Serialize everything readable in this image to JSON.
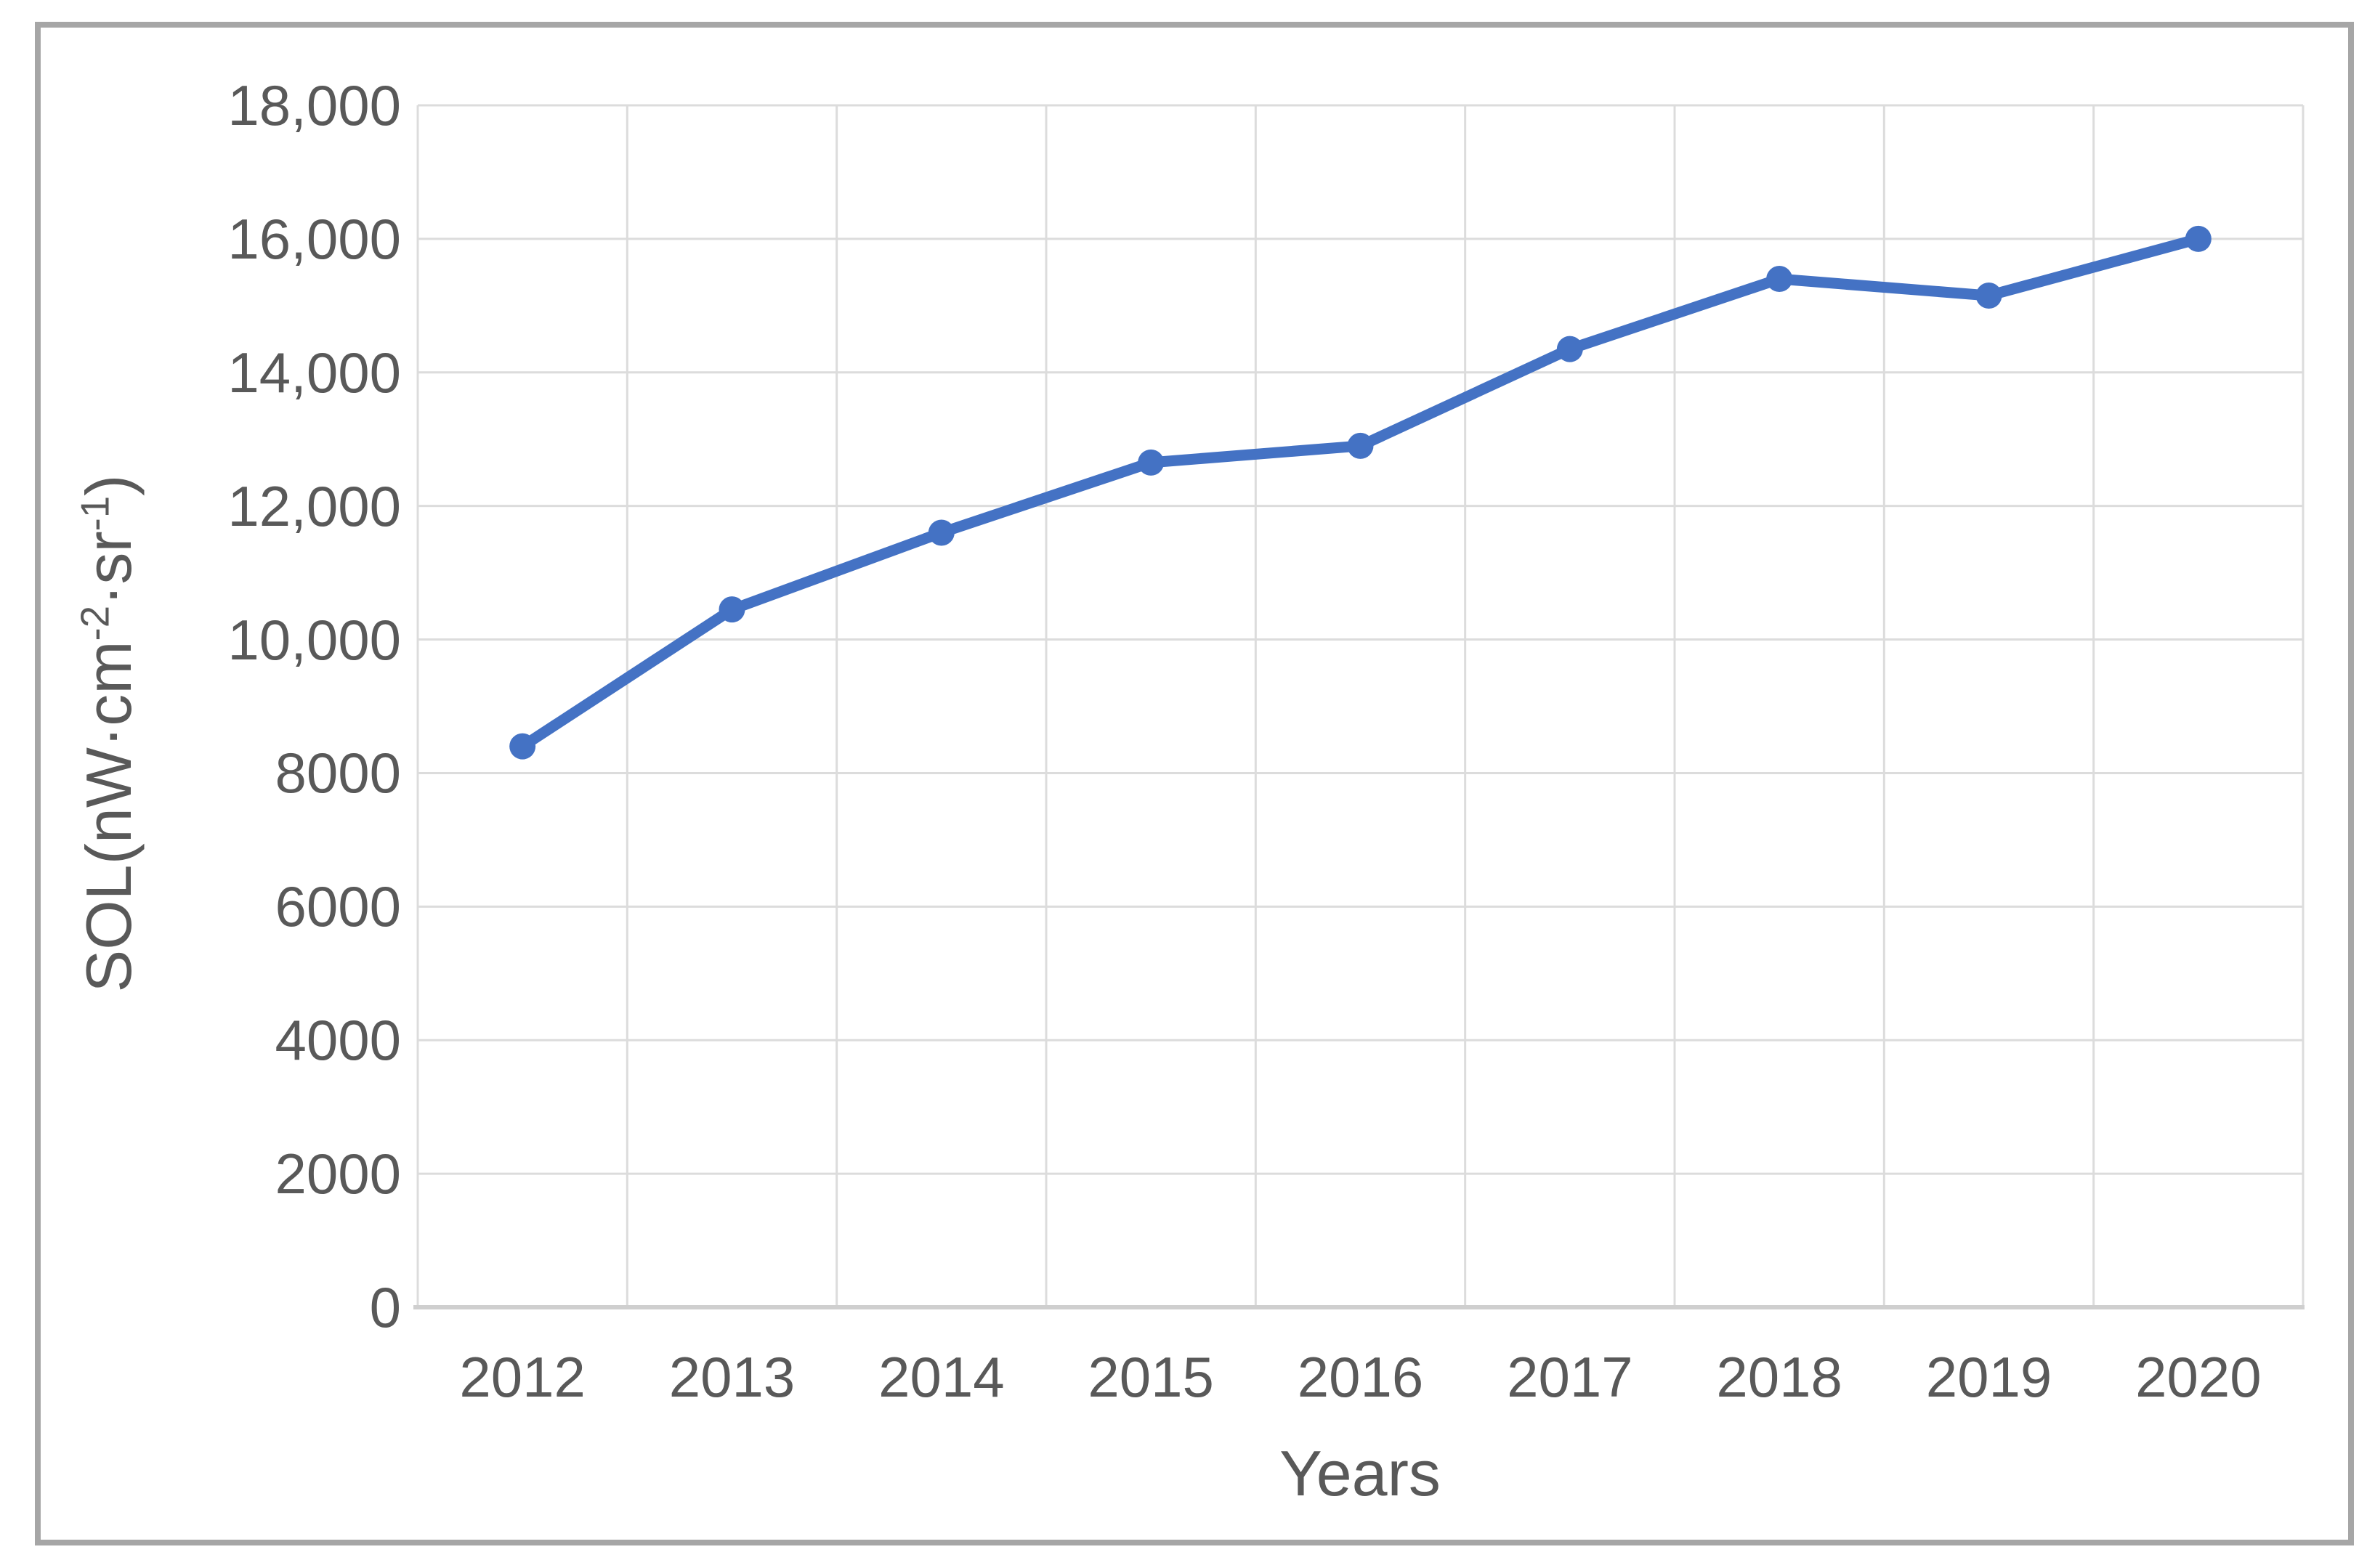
{
  "chart_data": {
    "type": "line",
    "title": "",
    "categories": [
      "2012",
      "2013",
      "2014",
      "2015",
      "2016",
      "2017",
      "2018",
      "2019",
      "2020"
    ],
    "series": [
      {
        "name": "SOL",
        "values": [
          8400,
          10450,
          11600,
          12650,
          12900,
          14350,
          15400,
          15150,
          16000
        ]
      }
    ],
    "xlabel": "Years",
    "ylabel": "SOL(nW·cm-2·sr-1)",
    "ylabel_parts": {
      "pre": "SOL(nW·cm",
      "sup1": "-2",
      "mid": "·sr",
      "sup2": "-1",
      "post": ")"
    },
    "ylim": [
      0,
      18000
    ],
    "y_tick_interval": 2000,
    "y_tick_labels": [
      "0",
      "2000",
      "4000",
      "6000",
      "8000",
      "10,000",
      "12,000",
      "14,000",
      "16,000",
      "18,000"
    ],
    "grid": true,
    "legend": false,
    "marker": "circle"
  },
  "colors": {
    "line": "#4472C4",
    "gridline": "#DCDCDC",
    "axis_line": "#CFCFCF",
    "text": "#595959",
    "frame_border": "#A6A6A6",
    "background": "#FFFFFF"
  }
}
